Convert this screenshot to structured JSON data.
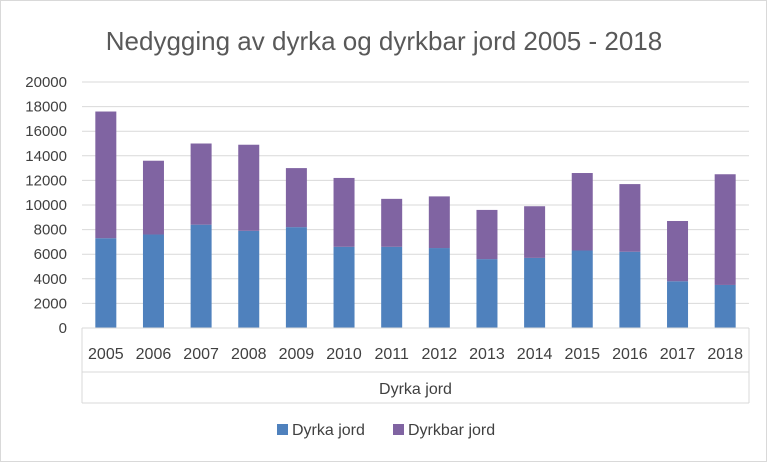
{
  "chart_data": {
    "type": "bar",
    "stacked": true,
    "title": "Nedygging av dyrka og dyrkbar jord 2005 - 2018",
    "categories": [
      "2005",
      "2006",
      "2007",
      "2008",
      "2009",
      "2010",
      "2011",
      "2012",
      "2013",
      "2014",
      "2015",
      "2016",
      "2017",
      "2018"
    ],
    "group_label": "Dyrka jord",
    "series": [
      {
        "name": "Dyrka jord",
        "color": "#4f81bd",
        "values": [
          7300,
          7600,
          8400,
          7900,
          8200,
          6600,
          6600,
          6500,
          5600,
          5700,
          6300,
          6200,
          3800,
          3500
        ]
      },
      {
        "name": "Dyrkbar jord",
        "color": "#8064a2",
        "values": [
          10300,
          6000,
          6600,
          7000,
          4800,
          5600,
          3900,
          4200,
          4000,
          4200,
          6300,
          5500,
          4900,
          9000
        ]
      }
    ],
    "ylim": [
      0,
      20000
    ],
    "yticks": [
      "0",
      "2000",
      "4000",
      "6000",
      "8000",
      "10000",
      "12000",
      "14000",
      "16000",
      "18000",
      "20000"
    ],
    "grid": true,
    "legend_position": "bottom"
  }
}
